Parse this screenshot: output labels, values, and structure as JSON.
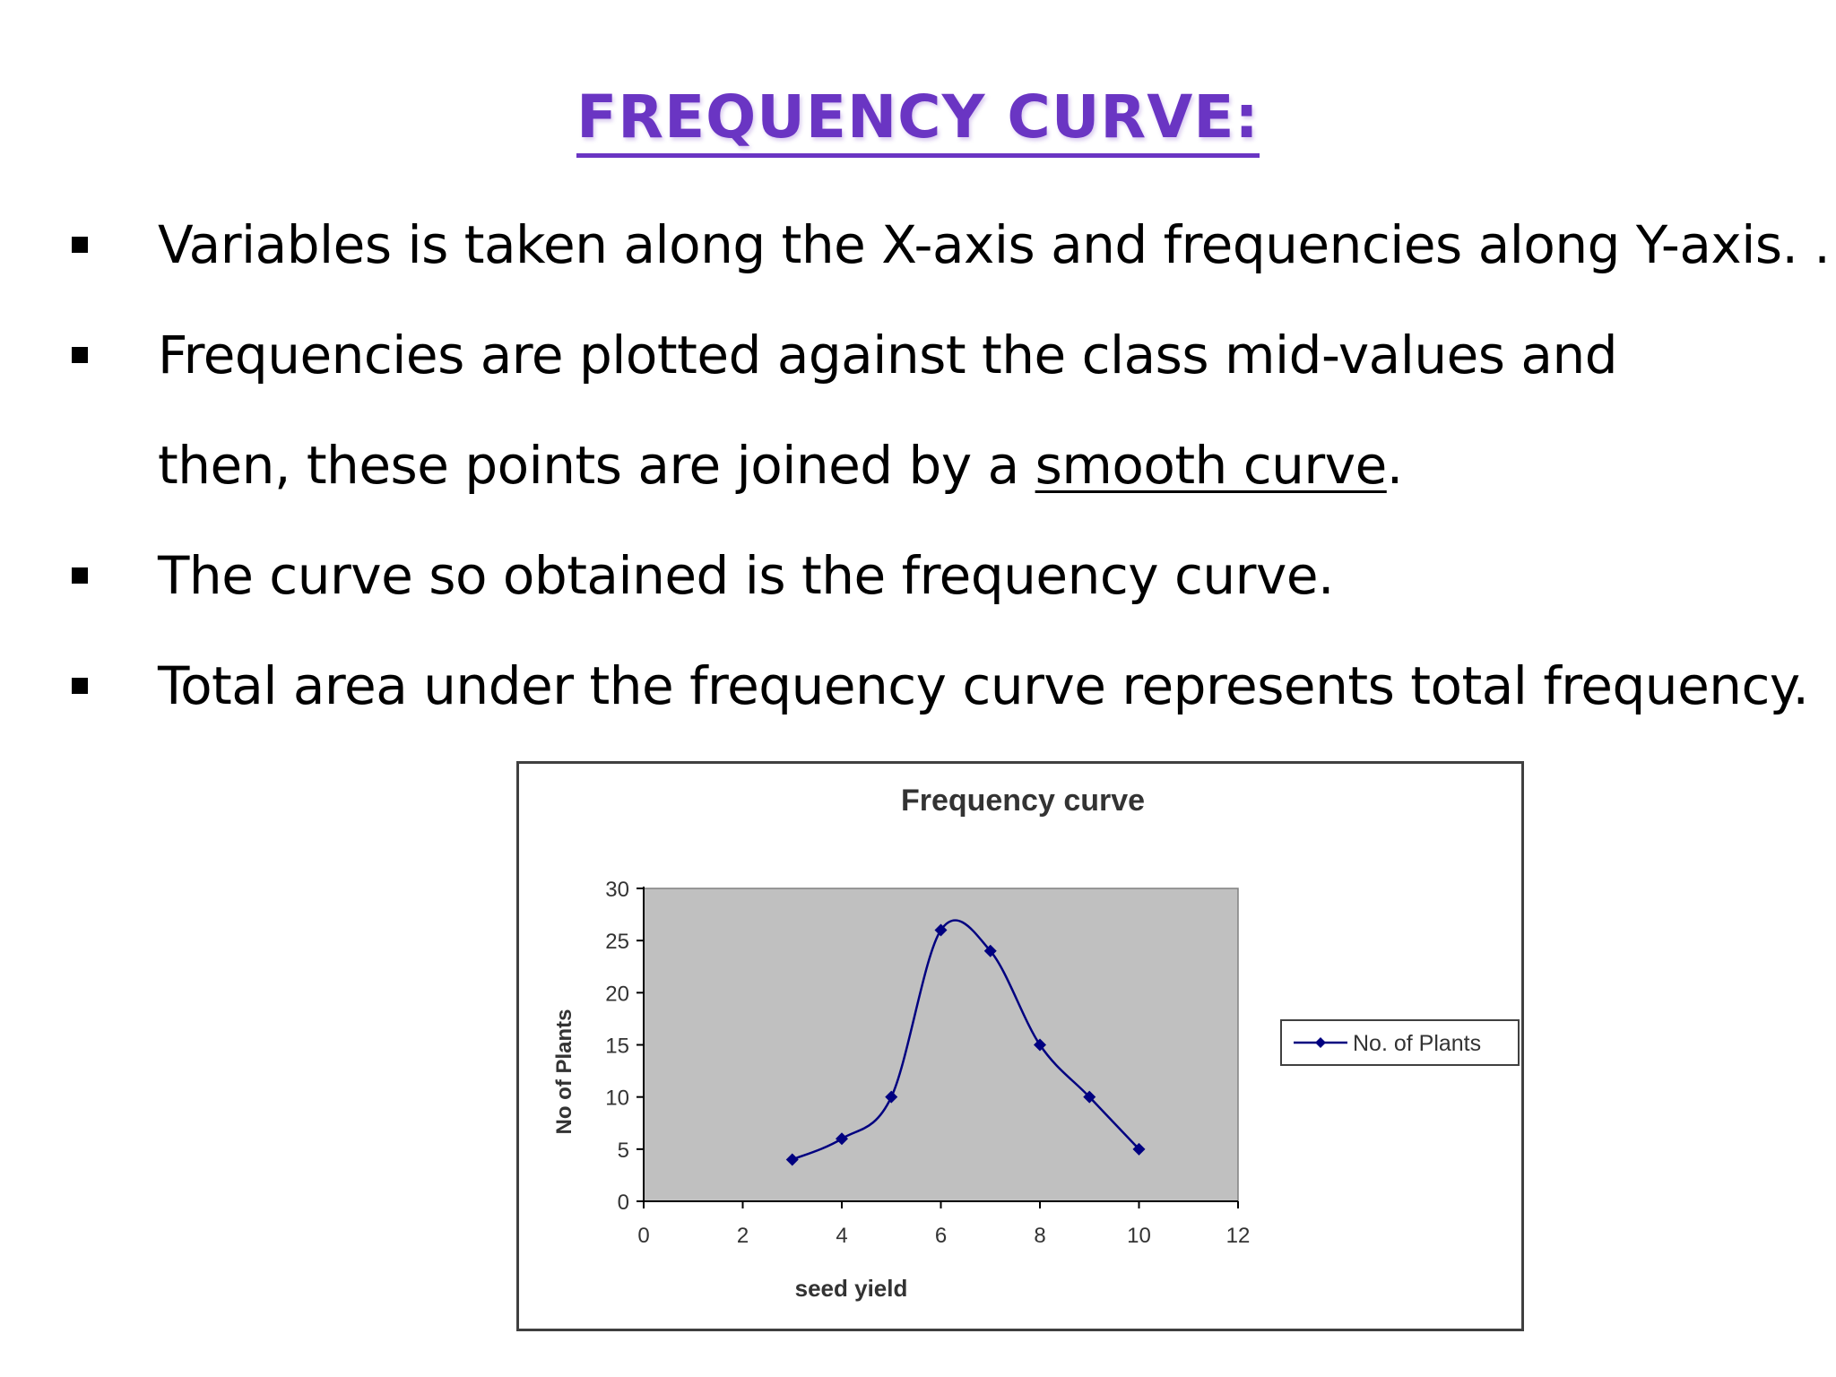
{
  "slide": {
    "title": "FREQUENCY CURVE:",
    "bullets": [
      {
        "text": "Variables is taken along the X-axis and frequencies along  Y-axis. ."
      },
      {
        "text": "Frequencies are plotted against the class mid-values and",
        "continuation_prefix": "then, these points are joined by a ",
        "continuation_underlined": "smooth curve",
        "continuation_suffix": "."
      },
      {
        "text": "The curve so obtained is the frequency curve."
      },
      {
        "text": "Total area under the frequency curve represents total frequency."
      }
    ]
  },
  "chart_data": {
    "type": "line",
    "title": "Frequency curve",
    "xlabel": "seed yield",
    "ylabel": "No of Plants",
    "xlim": [
      0,
      12
    ],
    "ylim": [
      0,
      30
    ],
    "xticks": [
      0,
      2,
      4,
      6,
      8,
      10,
      12
    ],
    "yticks": [
      0,
      5,
      10,
      15,
      20,
      25,
      30
    ],
    "smooth": true,
    "grid": false,
    "legend_position": "right",
    "plot_background": "#c0c0c0",
    "series": [
      {
        "name": "No. of Plants",
        "color": "#000080",
        "x": [
          3,
          4,
          5,
          6,
          7,
          8,
          9,
          10
        ],
        "y": [
          4,
          6,
          10,
          26,
          24,
          15,
          10,
          5
        ]
      }
    ]
  }
}
